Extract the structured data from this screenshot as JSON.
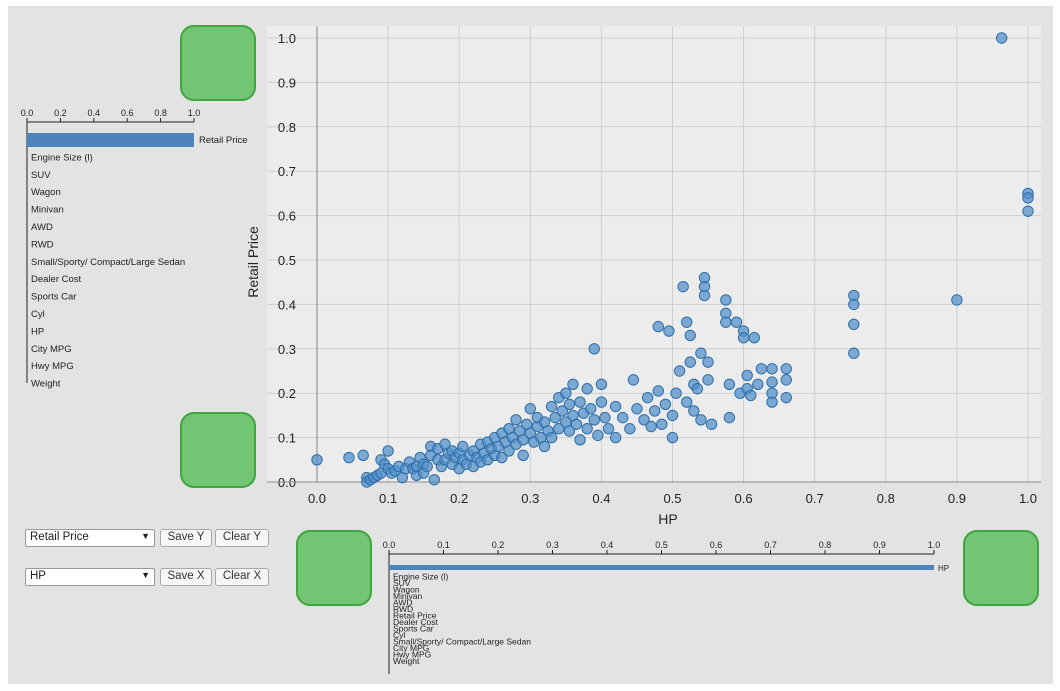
{
  "controls": {
    "y_select": "Retail Price",
    "x_select": "HP",
    "save_y": "Save Y",
    "clear_y": "Clear Y",
    "save_x": "Save X",
    "clear_x": "Clear X"
  },
  "correlation_y": {
    "ticks": [
      "0.0",
      "0.2",
      "0.4",
      "0.6",
      "0.8",
      "1.0"
    ],
    "rows": [
      {
        "label": "Retail Price",
        "value": 1.0
      },
      {
        "label": "Engine Size (l)",
        "value": 0
      },
      {
        "label": "SUV",
        "value": 0
      },
      {
        "label": "Wagon",
        "value": 0
      },
      {
        "label": "Minivan",
        "value": 0
      },
      {
        "label": "AWD",
        "value": 0
      },
      {
        "label": "RWD",
        "value": 0
      },
      {
        "label": "Small/Sporty/ Compact/Large Sedan",
        "value": 0
      },
      {
        "label": "Dealer Cost",
        "value": 0
      },
      {
        "label": "Sports Car",
        "value": 0
      },
      {
        "label": "Cyl",
        "value": 0
      },
      {
        "label": "HP",
        "value": 0
      },
      {
        "label": "City MPG",
        "value": 0
      },
      {
        "label": "Hwy MPG",
        "value": 0
      },
      {
        "label": "Weight",
        "value": 0
      }
    ]
  },
  "correlation_x": {
    "ticks": [
      "0.0",
      "0.1",
      "0.2",
      "0.3",
      "0.4",
      "0.5",
      "0.6",
      "0.7",
      "0.8",
      "0.9",
      "1.0"
    ],
    "rows": [
      {
        "label": "HP",
        "value": 1.0
      },
      {
        "label": "Engine Size (l)",
        "value": 0
      },
      {
        "label": "SUV",
        "value": 0
      },
      {
        "label": "Wagon",
        "value": 0
      },
      {
        "label": "Minivan",
        "value": 0
      },
      {
        "label": "AWD",
        "value": 0
      },
      {
        "label": "RWD",
        "value": 0
      },
      {
        "label": "Retail Price",
        "value": 0
      },
      {
        "label": "Dealer Cost",
        "value": 0
      },
      {
        "label": "Sports Car",
        "value": 0
      },
      {
        "label": "Cyl",
        "value": 0
      },
      {
        "label": "Small/Sporty/ Compact/Large Sedan",
        "value": 0
      },
      {
        "label": "City MPG",
        "value": 0
      },
      {
        "label": "Hwy MPG",
        "value": 0
      },
      {
        "label": "Weight",
        "value": 0
      }
    ]
  },
  "chart_data": {
    "type": "scatter",
    "xlabel": "HP",
    "ylabel": "Retail Price",
    "xlim": [
      0,
      1
    ],
    "ylim": [
      0,
      1
    ],
    "xticks": [
      "0.0",
      "0.1",
      "0.2",
      "0.3",
      "0.4",
      "0.5",
      "0.6",
      "0.7",
      "0.8",
      "0.9",
      "1.0"
    ],
    "yticks": [
      "0.0",
      "0.1",
      "0.2",
      "0.3",
      "0.4",
      "0.5",
      "0.6",
      "0.7",
      "0.8",
      "0.9",
      "1.0"
    ],
    "grid": true,
    "point_color": "#4f8fc9",
    "points": [
      [
        0.0,
        0.05
      ],
      [
        0.045,
        0.055
      ],
      [
        0.065,
        0.06
      ],
      [
        0.07,
        0.01
      ],
      [
        0.07,
        0.0
      ],
      [
        0.075,
        0.005
      ],
      [
        0.08,
        0.01
      ],
      [
        0.085,
        0.015
      ],
      [
        0.09,
        0.02
      ],
      [
        0.09,
        0.05
      ],
      [
        0.095,
        0.04
      ],
      [
        0.1,
        0.07
      ],
      [
        0.1,
        0.03
      ],
      [
        0.105,
        0.02
      ],
      [
        0.11,
        0.025
      ],
      [
        0.115,
        0.035
      ],
      [
        0.12,
        0.01
      ],
      [
        0.125,
        0.03
      ],
      [
        0.13,
        0.045
      ],
      [
        0.135,
        0.03
      ],
      [
        0.14,
        0.015
      ],
      [
        0.14,
        0.035
      ],
      [
        0.145,
        0.055
      ],
      [
        0.15,
        0.02
      ],
      [
        0.15,
        0.04
      ],
      [
        0.155,
        0.035
      ],
      [
        0.16,
        0.08
      ],
      [
        0.16,
        0.06
      ],
      [
        0.165,
        0.005
      ],
      [
        0.17,
        0.05
      ],
      [
        0.17,
        0.075
      ],
      [
        0.175,
        0.035
      ],
      [
        0.18,
        0.085
      ],
      [
        0.18,
        0.05
      ],
      [
        0.185,
        0.065
      ],
      [
        0.19,
        0.04
      ],
      [
        0.19,
        0.07
      ],
      [
        0.195,
        0.055
      ],
      [
        0.2,
        0.03
      ],
      [
        0.2,
        0.065
      ],
      [
        0.205,
        0.05
      ],
      [
        0.205,
        0.08
      ],
      [
        0.21,
        0.04
      ],
      [
        0.215,
        0.06
      ],
      [
        0.22,
        0.035
      ],
      [
        0.22,
        0.07
      ],
      [
        0.225,
        0.055
      ],
      [
        0.23,
        0.045
      ],
      [
        0.23,
        0.085
      ],
      [
        0.235,
        0.065
      ],
      [
        0.24,
        0.09
      ],
      [
        0.24,
        0.05
      ],
      [
        0.245,
        0.075
      ],
      [
        0.25,
        0.06
      ],
      [
        0.25,
        0.1
      ],
      [
        0.255,
        0.08
      ],
      [
        0.26,
        0.055
      ],
      [
        0.26,
        0.11
      ],
      [
        0.265,
        0.09
      ],
      [
        0.27,
        0.07
      ],
      [
        0.27,
        0.12
      ],
      [
        0.275,
        0.1
      ],
      [
        0.28,
        0.085
      ],
      [
        0.28,
        0.14
      ],
      [
        0.285,
        0.115
      ],
      [
        0.29,
        0.095
      ],
      [
        0.29,
        0.06
      ],
      [
        0.295,
        0.13
      ],
      [
        0.3,
        0.11
      ],
      [
        0.3,
        0.165
      ],
      [
        0.305,
        0.09
      ],
      [
        0.31,
        0.125
      ],
      [
        0.31,
        0.145
      ],
      [
        0.315,
        0.1
      ],
      [
        0.32,
        0.08
      ],
      [
        0.32,
        0.135
      ],
      [
        0.325,
        0.115
      ],
      [
        0.33,
        0.17
      ],
      [
        0.33,
        0.1
      ],
      [
        0.335,
        0.145
      ],
      [
        0.34,
        0.12
      ],
      [
        0.34,
        0.19
      ],
      [
        0.345,
        0.16
      ],
      [
        0.35,
        0.135
      ],
      [
        0.35,
        0.2
      ],
      [
        0.355,
        0.115
      ],
      [
        0.355,
        0.175
      ],
      [
        0.36,
        0.15
      ],
      [
        0.36,
        0.22
      ],
      [
        0.365,
        0.13
      ],
      [
        0.37,
        0.18
      ],
      [
        0.37,
        0.095
      ],
      [
        0.375,
        0.155
      ],
      [
        0.38,
        0.21
      ],
      [
        0.38,
        0.12
      ],
      [
        0.385,
        0.165
      ],
      [
        0.39,
        0.3
      ],
      [
        0.39,
        0.14
      ],
      [
        0.395,
        0.105
      ],
      [
        0.4,
        0.18
      ],
      [
        0.4,
        0.22
      ],
      [
        0.405,
        0.145
      ],
      [
        0.41,
        0.12
      ],
      [
        0.42,
        0.17
      ],
      [
        0.42,
        0.1
      ],
      [
        0.43,
        0.145
      ],
      [
        0.44,
        0.12
      ],
      [
        0.445,
        0.23
      ],
      [
        0.45,
        0.165
      ],
      [
        0.46,
        0.14
      ],
      [
        0.465,
        0.19
      ],
      [
        0.47,
        0.125
      ],
      [
        0.475,
        0.16
      ],
      [
        0.48,
        0.35
      ],
      [
        0.48,
        0.205
      ],
      [
        0.485,
        0.13
      ],
      [
        0.49,
        0.175
      ],
      [
        0.495,
        0.34
      ],
      [
        0.5,
        0.1
      ],
      [
        0.5,
        0.15
      ],
      [
        0.505,
        0.2
      ],
      [
        0.51,
        0.25
      ],
      [
        0.515,
        0.44
      ],
      [
        0.52,
        0.36
      ],
      [
        0.52,
        0.18
      ],
      [
        0.525,
        0.33
      ],
      [
        0.525,
        0.27
      ],
      [
        0.53,
        0.22
      ],
      [
        0.53,
        0.16
      ],
      [
        0.535,
        0.21
      ],
      [
        0.54,
        0.29
      ],
      [
        0.54,
        0.14
      ],
      [
        0.545,
        0.46
      ],
      [
        0.545,
        0.44
      ],
      [
        0.545,
        0.42
      ],
      [
        0.55,
        0.23
      ],
      [
        0.55,
        0.27
      ],
      [
        0.555,
        0.13
      ],
      [
        0.575,
        0.41
      ],
      [
        0.575,
        0.38
      ],
      [
        0.575,
        0.36
      ],
      [
        0.58,
        0.22
      ],
      [
        0.58,
        0.145
      ],
      [
        0.59,
        0.36
      ],
      [
        0.595,
        0.2
      ],
      [
        0.6,
        0.34
      ],
      [
        0.6,
        0.325
      ],
      [
        0.605,
        0.24
      ],
      [
        0.605,
        0.21
      ],
      [
        0.61,
        0.195
      ],
      [
        0.615,
        0.325
      ],
      [
        0.62,
        0.22
      ],
      [
        0.625,
        0.255
      ],
      [
        0.64,
        0.18
      ],
      [
        0.64,
        0.2
      ],
      [
        0.64,
        0.225
      ],
      [
        0.64,
        0.255
      ],
      [
        0.66,
        0.23
      ],
      [
        0.66,
        0.255
      ],
      [
        0.66,
        0.19
      ],
      [
        0.755,
        0.42
      ],
      [
        0.755,
        0.4
      ],
      [
        0.755,
        0.355
      ],
      [
        0.755,
        0.29
      ],
      [
        0.9,
        0.41
      ],
      [
        0.963,
        1.0
      ],
      [
        1.0,
        0.65
      ],
      [
        1.0,
        0.64
      ],
      [
        1.0,
        0.61
      ]
    ]
  }
}
